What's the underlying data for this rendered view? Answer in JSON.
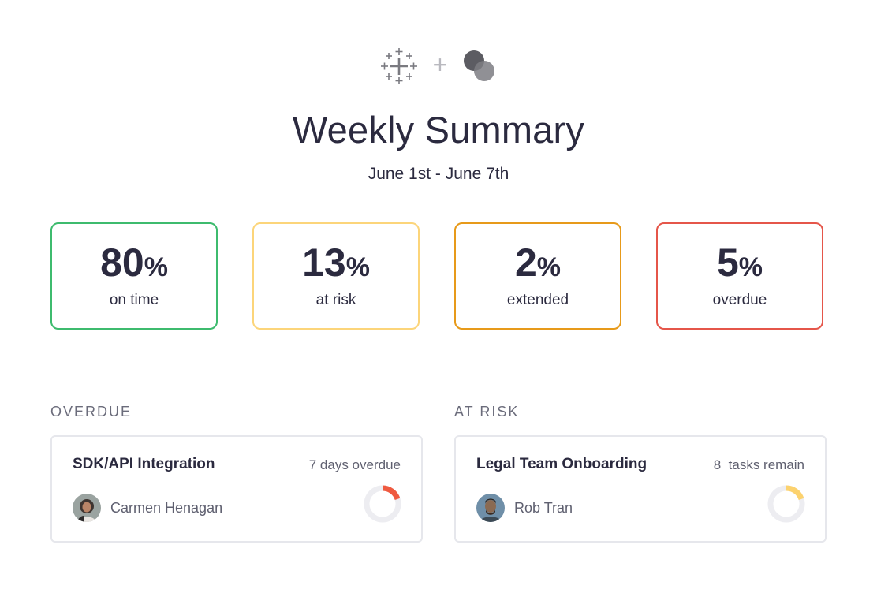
{
  "header": {
    "plus_symbol": "+",
    "title": "Weekly Summary",
    "date_range": "June 1st - June 7th"
  },
  "logos": {
    "left_icon": "tableau-cross-icon",
    "right_icon": "overlapping-circles-icon"
  },
  "stats": [
    {
      "value": "80",
      "unit": "%",
      "label": "on time",
      "color": "#3dbb6e"
    },
    {
      "value": "13",
      "unit": "%",
      "label": "at risk",
      "color": "#fcd57a"
    },
    {
      "value": "2",
      "unit": "%",
      "label": "extended",
      "color": "#e79a1a"
    },
    {
      "value": "5",
      "unit": "%",
      "label": "overdue",
      "color": "#e5564a"
    }
  ],
  "sections": {
    "overdue": {
      "heading": "OVERDUE",
      "task": {
        "title": "SDK/API Integration",
        "status": "7 days overdue",
        "assignee": "Carmen Henagan",
        "progress": 0.2,
        "progress_color": "#ef5a40"
      }
    },
    "at_risk": {
      "heading": "AT RISK",
      "task": {
        "title": "Legal Team Onboarding",
        "status": "8  tasks remain",
        "assignee": "Rob Tran",
        "progress": 0.2,
        "progress_color": "#fcd26e"
      }
    }
  },
  "colors": {
    "text": "#2b2a3f",
    "muted": "#5f6070",
    "card_border": "#e6e7ec",
    "donut_track": "#ededf1"
  }
}
